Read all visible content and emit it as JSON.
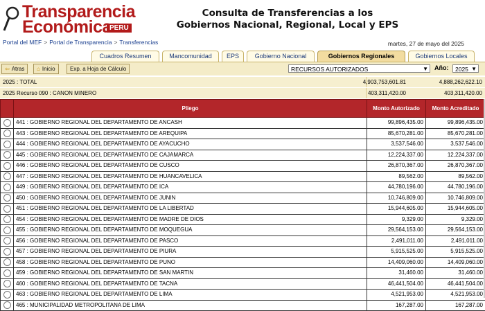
{
  "header": {
    "logo_line1": "Transparencia",
    "logo_line2": "Económica",
    "logo_badge": "PERU",
    "title_line1": "Consulta de Transferencias a los",
    "title_line2": "Gobiernos Nacional, Regional, Local y EPS"
  },
  "breadcrumb": [
    "Portal del MEF",
    "Portal de Transparencia",
    "Transferencias"
  ],
  "breadcrumb_sep": ">",
  "date": "martes, 27 de mayo del 2025",
  "tabs": [
    {
      "label": "Cuadros Resumen",
      "active": false
    },
    {
      "label": "Mancomunidad",
      "active": false
    },
    {
      "label": "EPS",
      "active": false
    },
    {
      "label": "Gobierno Nacional",
      "active": false
    },
    {
      "label": "Gobiernos Regionales",
      "active": true
    },
    {
      "label": "Gobiernos Locales",
      "active": false
    }
  ],
  "toolbar": {
    "back_label": "Atras",
    "home_label": "Inicio",
    "export_label": "Exp. a Hoja de Cálculo",
    "resource_select": "RECURSOS AUTORIZADOS",
    "year_label": "Año:",
    "year_value": "2025"
  },
  "summary": [
    {
      "label": "2025   : TOTAL",
      "autorizado": "4,903,753,601.81",
      "acreditado": "4,888,262,622.10"
    },
    {
      "label": "2025   Recurso 090 : CANON MINERO",
      "autorizado": "403,311,420.00",
      "acreditado": "403,311,420.00"
    }
  ],
  "table": {
    "col_pliego": "Pliego",
    "col_autorizado": "Monto Autorizado",
    "col_acreditado": "Monto Acreditado",
    "rows": [
      {
        "pliego": "441 : GOBIERNO REGIONAL DEL DEPARTAMENTO DE ANCASH",
        "autorizado": "99,896,435.00",
        "acreditado": "99,896,435.00"
      },
      {
        "pliego": "443 : GOBIERNO REGIONAL DEL DEPARTAMENTO DE AREQUIPA",
        "autorizado": "85,670,281.00",
        "acreditado": "85,670,281.00"
      },
      {
        "pliego": "444 : GOBIERNO REGIONAL DEL DEPARTAMENTO DE AYACUCHO",
        "autorizado": "3,537,546.00",
        "acreditado": "3,537,546.00"
      },
      {
        "pliego": "445 : GOBIERNO REGIONAL DEL DEPARTAMENTO DE CAJAMARCA",
        "autorizado": "12,224,337.00",
        "acreditado": "12,224,337.00"
      },
      {
        "pliego": "446 : GOBIERNO REGIONAL DEL DEPARTAMENTO DE CUSCO",
        "autorizado": "26,870,367.00",
        "acreditado": "26,870,367.00"
      },
      {
        "pliego": "447 : GOBIERNO REGIONAL DEL DEPARTAMENTO DE HUANCAVELICA",
        "autorizado": "89,562.00",
        "acreditado": "89,562.00"
      },
      {
        "pliego": "449 : GOBIERNO REGIONAL DEL DEPARTAMENTO DE ICA",
        "autorizado": "44,780,196.00",
        "acreditado": "44,780,196.00"
      },
      {
        "pliego": "450 : GOBIERNO REGIONAL DEL DEPARTAMENTO DE JUNIN",
        "autorizado": "10,746,809.00",
        "acreditado": "10,746,809.00"
      },
      {
        "pliego": "451 : GOBIERNO REGIONAL DEL DEPARTAMENTO DE LA LIBERTAD",
        "autorizado": "15,944,605.00",
        "acreditado": "15,944,605.00"
      },
      {
        "pliego": "454 : GOBIERNO REGIONAL DEL DEPARTAMENTO DE MADRE DE DIOS",
        "autorizado": "9,329.00",
        "acreditado": "9,329.00"
      },
      {
        "pliego": "455 : GOBIERNO REGIONAL DEL DEPARTAMENTO DE MOQUEGUA",
        "autorizado": "29,564,153.00",
        "acreditado": "29,564,153.00"
      },
      {
        "pliego": "456 : GOBIERNO REGIONAL DEL DEPARTAMENTO DE PASCO",
        "autorizado": "2,491,011.00",
        "acreditado": "2,491,011.00"
      },
      {
        "pliego": "457 : GOBIERNO REGIONAL DEL DEPARTAMENTO DE PIURA",
        "autorizado": "5,915,525.00",
        "acreditado": "5,915,525.00"
      },
      {
        "pliego": "458 : GOBIERNO REGIONAL DEL DEPARTAMENTO DE PUNO",
        "autorizado": "14,409,060.00",
        "acreditado": "14,409,060.00"
      },
      {
        "pliego": "459 : GOBIERNO REGIONAL DEL DEPARTAMENTO DE SAN MARTIN",
        "autorizado": "31,460.00",
        "acreditado": "31,460.00"
      },
      {
        "pliego": "460 : GOBIERNO REGIONAL DEL DEPARTAMENTO DE TACNA",
        "autorizado": "46,441,504.00",
        "acreditado": "46,441,504.00"
      },
      {
        "pliego": "463 : GOBIERNO REGIONAL DEL DEPARTAMENTO DE LIMA",
        "autorizado": "4,521,953.00",
        "acreditado": "4,521,953.00"
      },
      {
        "pliego": "465 : MUNICIPALIDAD METROPOLITANA DE LIMA",
        "autorizado": "167,287.00",
        "acreditado": "167,287.00"
      }
    ]
  },
  "colors": {
    "brand_red": "#b21a1a",
    "header_row_red": "#b3262a",
    "tab_active_bg": "#f2dca0",
    "toolbar_bg": "#f4ecc8"
  }
}
